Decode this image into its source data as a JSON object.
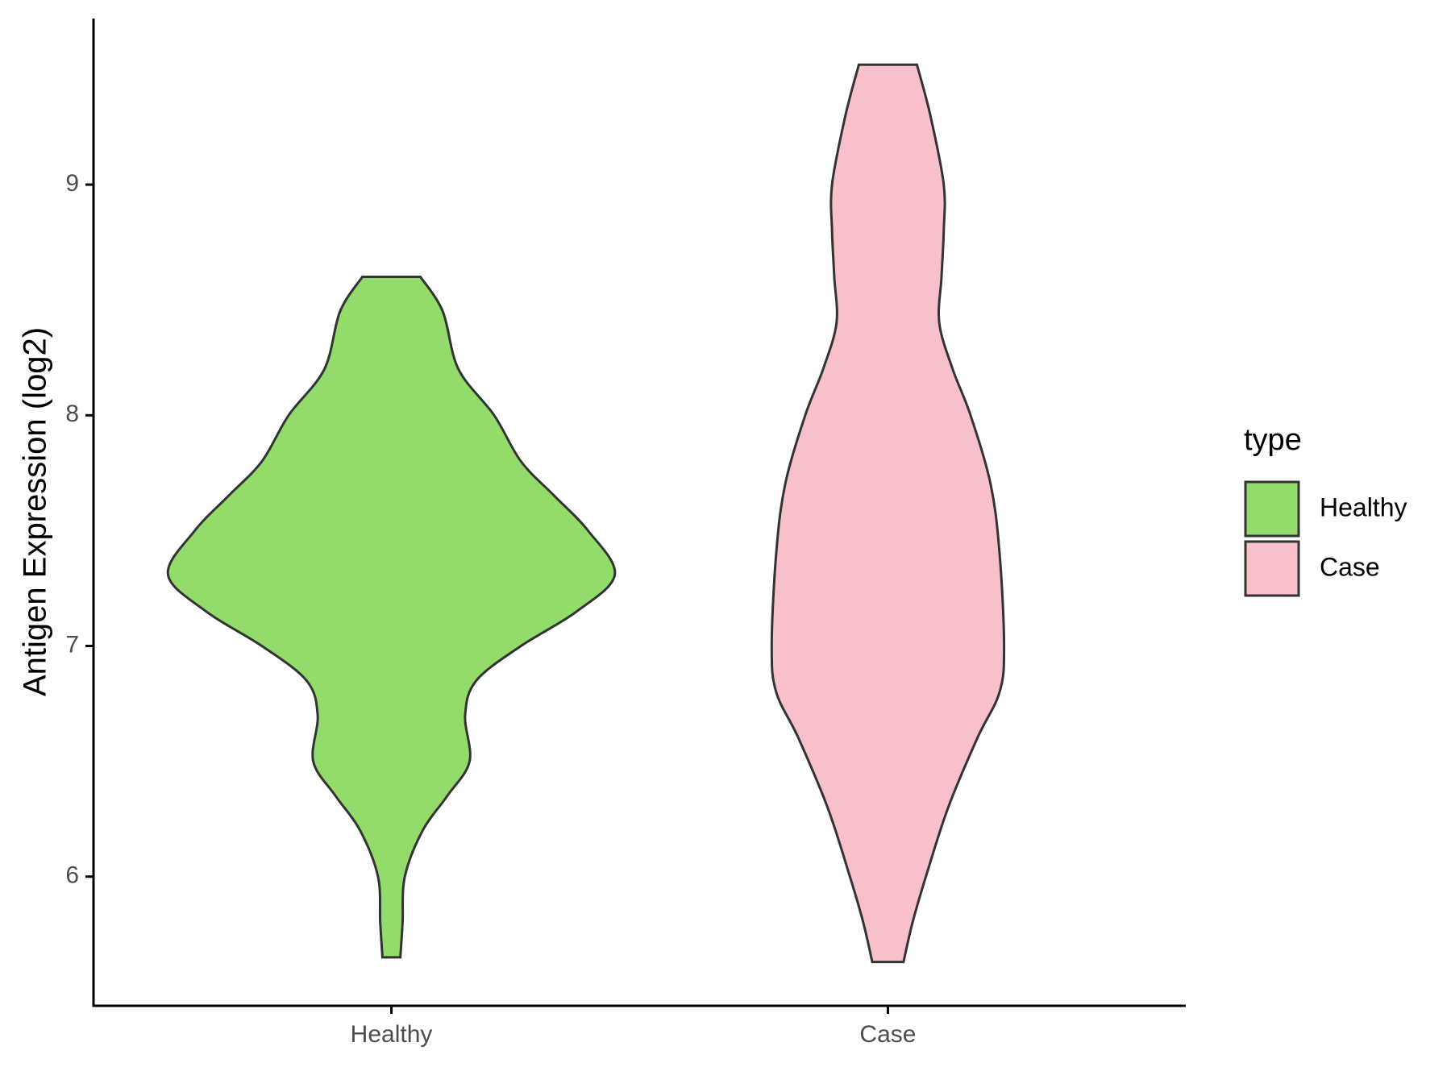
{
  "chart_data": {
    "type": "violin",
    "ylabel": "Antigen Expression (log2)",
    "legend_title": "type",
    "categories": [
      "Healthy",
      "Case"
    ],
    "series": [
      {
        "name": "Healthy",
        "color": "#93dc6b",
        "y": [
          8.6,
          8.45,
          8.2,
          8.0,
          7.8,
          7.65,
          7.5,
          7.31,
          7.15,
          7.0,
          6.85,
          6.7,
          6.5,
          6.35,
          6.2,
          6.0,
          5.8,
          5.65
        ],
        "width": [
          0.13,
          0.23,
          0.3,
          0.46,
          0.58,
          0.73,
          0.88,
          1.0,
          0.83,
          0.58,
          0.38,
          0.33,
          0.35,
          0.25,
          0.14,
          0.06,
          0.05,
          0.04
        ]
      },
      {
        "name": "Case",
        "color": "#f7c0cb",
        "y": [
          9.52,
          9.3,
          9.0,
          8.8,
          8.6,
          8.4,
          8.2,
          8.0,
          7.7,
          7.4,
          7.0,
          6.8,
          6.6,
          6.3,
          6.0,
          5.8,
          5.63
        ],
        "width": [
          0.13,
          0.19,
          0.25,
          0.25,
          0.24,
          0.23,
          0.29,
          0.37,
          0.46,
          0.5,
          0.52,
          0.5,
          0.4,
          0.27,
          0.17,
          0.11,
          0.07
        ]
      }
    ],
    "ylim": [
      5.44,
      9.72
    ],
    "yticks": [
      6,
      7,
      8,
      9
    ]
  }
}
